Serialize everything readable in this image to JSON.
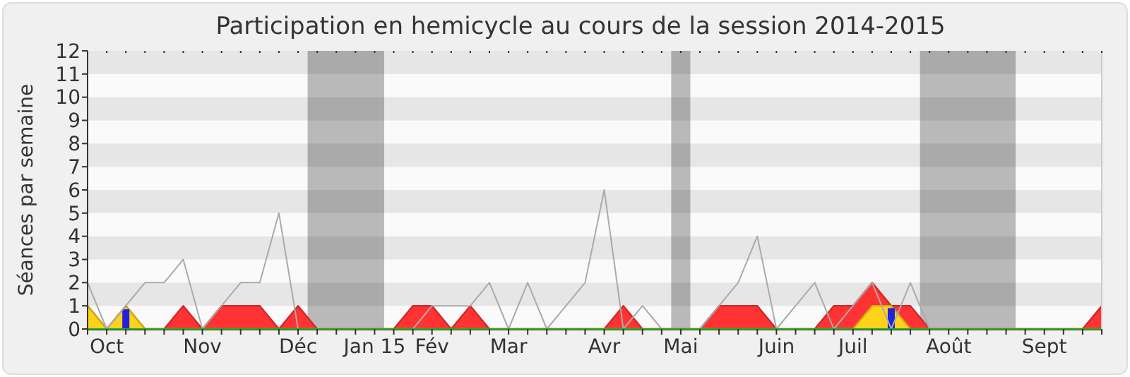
{
  "chart_data": {
    "type": "area",
    "title": "Participation en hemicycle au cours de la session 2014-2015",
    "ylabel": "Séances par semaine",
    "x": [
      "2014-09-29",
      "2014-10-06",
      "2014-10-13",
      "2014-10-20",
      "2014-10-27",
      "2014-11-03",
      "2014-11-10",
      "2014-11-17",
      "2014-11-24",
      "2014-12-01",
      "2014-12-08",
      "2014-12-15",
      "2014-12-22",
      "2014-12-29",
      "2015-01-05",
      "2015-01-12",
      "2015-01-19",
      "2015-01-26",
      "2015-02-02",
      "2015-02-09",
      "2015-02-16",
      "2015-02-23",
      "2015-03-02",
      "2015-03-09",
      "2015-03-16",
      "2015-03-23",
      "2015-03-30",
      "2015-04-06",
      "2015-04-13",
      "2015-04-20",
      "2015-04-27",
      "2015-05-04",
      "2015-05-11",
      "2015-05-18",
      "2015-05-25",
      "2015-06-01",
      "2015-06-08",
      "2015-06-15",
      "2015-06-22",
      "2015-06-29",
      "2015-07-06",
      "2015-07-13",
      "2015-07-20",
      "2015-07-27",
      "2015-08-03",
      "2015-08-10",
      "2015-08-17",
      "2015-08-24",
      "2015-08-31",
      "2015-09-07",
      "2015-09-14",
      "2015-09-21",
      "2015-09-28",
      "2015-10-05"
    ],
    "xlim": [
      "2014-09-29",
      "2015-10-05"
    ],
    "xticks": [
      {
        "value": "2014-10-06",
        "label": "Oct"
      },
      {
        "value": "2014-11-10",
        "label": "Nov"
      },
      {
        "value": "2014-12-15",
        "label": "Déc"
      },
      {
        "value": "2015-01-12",
        "label": "Jan 15"
      },
      {
        "value": "2015-02-02",
        "label": "Fév"
      },
      {
        "value": "2015-03-02",
        "label": "Mar"
      },
      {
        "value": "2015-04-06",
        "label": "Avr"
      },
      {
        "value": "2015-05-04",
        "label": "Mai"
      },
      {
        "value": "2015-06-08",
        "label": "Juin"
      },
      {
        "value": "2015-07-06",
        "label": "Juil"
      },
      {
        "value": "2015-08-10",
        "label": "Août"
      },
      {
        "value": "2015-09-14",
        "label": "Sept"
      },
      {
        "value": "2014-09-29",
        "label": null
      },
      {
        "value": "2014-10-06",
        "label": null
      },
      {
        "value": "2014-10-13",
        "label": null
      },
      {
        "value": "2014-10-20",
        "label": null
      },
      {
        "value": "2014-10-27",
        "label": null
      },
      {
        "value": "2014-11-03",
        "label": null
      },
      {
        "value": "2014-11-10",
        "label": null
      },
      {
        "value": "2014-11-17",
        "label": null
      },
      {
        "value": "2014-11-24",
        "label": null
      },
      {
        "value": "2014-12-01",
        "label": null
      },
      {
        "value": "2014-12-08",
        "label": null
      },
      {
        "value": "2014-12-15",
        "label": null
      },
      {
        "value": "2014-12-22",
        "label": null
      },
      {
        "value": "2014-12-29",
        "label": null
      },
      {
        "value": "2015-01-05",
        "label": null
      },
      {
        "value": "2015-01-12",
        "label": null
      },
      {
        "value": "2015-01-19",
        "label": null
      },
      {
        "value": "2015-01-26",
        "label": null
      },
      {
        "value": "2015-02-02",
        "label": null
      },
      {
        "value": "2015-02-09",
        "label": null
      },
      {
        "value": "2015-02-16",
        "label": null
      },
      {
        "value": "2015-02-23",
        "label": null
      },
      {
        "value": "2015-03-02",
        "label": null
      },
      {
        "value": "2015-03-09",
        "label": null
      },
      {
        "value": "2015-03-16",
        "label": null
      },
      {
        "value": "2015-03-23",
        "label": null
      },
      {
        "value": "2015-03-30",
        "label": null
      },
      {
        "value": "2015-04-06",
        "label": null
      },
      {
        "value": "2015-04-13",
        "label": null
      },
      {
        "value": "2015-04-20",
        "label": null
      },
      {
        "value": "2015-04-27",
        "label": null
      },
      {
        "value": "2015-05-04",
        "label": null
      },
      {
        "value": "2015-05-11",
        "label": null
      },
      {
        "value": "2015-05-18",
        "label": null
      },
      {
        "value": "2015-05-25",
        "label": null
      },
      {
        "value": "2015-06-01",
        "label": null
      },
      {
        "value": "2015-06-08",
        "label": null
      },
      {
        "value": "2015-06-15",
        "label": null
      },
      {
        "value": "2015-06-22",
        "label": null
      },
      {
        "value": "2015-06-29",
        "label": null
      },
      {
        "value": "2015-07-06",
        "label": null
      },
      {
        "value": "2015-07-13",
        "label": null
      },
      {
        "value": "2015-07-20",
        "label": null
      },
      {
        "value": "2015-07-27",
        "label": null
      },
      {
        "value": "2015-08-03",
        "label": null
      },
      {
        "value": "2015-08-10",
        "label": null
      },
      {
        "value": "2015-08-17",
        "label": null
      },
      {
        "value": "2015-08-24",
        "label": null
      },
      {
        "value": "2015-08-31",
        "label": null
      },
      {
        "value": "2015-09-07",
        "label": null
      },
      {
        "value": "2015-09-14",
        "label": null
      },
      {
        "value": "2015-09-21",
        "label": null
      },
      {
        "value": "2015-09-28",
        "label": null
      },
      {
        "value": "2015-10-05",
        "label": null
      }
    ],
    "ylim": [
      0,
      12
    ],
    "yticks": [
      0,
      1,
      2,
      3,
      4,
      5,
      6,
      7,
      8,
      9,
      10,
      11,
      12
    ],
    "bands": [
      {
        "axis": "x",
        "from": "2014-12-18T12:00",
        "to": "2015-01-15T12:00",
        "color": "#bdbdbd"
      },
      {
        "axis": "x",
        "from": "2015-04-30T12:00",
        "to": "2015-05-07T12:00",
        "color": "#bdbdbd"
      },
      {
        "axis": "x",
        "from": "2015-07-30T12:00",
        "to": "2015-09-03T12:00",
        "color": "#bdbdbd"
      }
    ],
    "series": [
      {
        "color": "#ff3333",
        "values": [
          1,
          0,
          1,
          0,
          0,
          1,
          0,
          1,
          1,
          1,
          0,
          1,
          0,
          0,
          0,
          0,
          0,
          1,
          1,
          0,
          1,
          0,
          0,
          0,
          0,
          0,
          0,
          0,
          1,
          0,
          0,
          0,
          0,
          1,
          1,
          1,
          0,
          0,
          0,
          1,
          1,
          2,
          1,
          1,
          0,
          0,
          0,
          0,
          0,
          0,
          0,
          0,
          0,
          1
        ]
      },
      {
        "color": "#ffd21a",
        "values": [
          1,
          0,
          1,
          0,
          0,
          0,
          0,
          0,
          0,
          0,
          0,
          0,
          0,
          0,
          0,
          0,
          0,
          0,
          0,
          0,
          0,
          0,
          0,
          0,
          0,
          0,
          0,
          0,
          0,
          0,
          0,
          0,
          0,
          0,
          0,
          0,
          0,
          0,
          0,
          0,
          0,
          1,
          1,
          0,
          0,
          0,
          0,
          0,
          0,
          0,
          0,
          0,
          0,
          0
        ]
      },
      {
        "type": "bar",
        "color": "#2222dd",
        "x": [
          "2014-10-13",
          "2015-07-20"
        ],
        "values": [
          0.85,
          0.9
        ]
      },
      {
        "type": "line",
        "color": "#aaaaaa",
        "values": [
          2,
          0,
          1,
          2,
          2,
          3,
          0,
          1,
          2,
          2,
          5,
          0,
          0,
          0,
          0,
          0,
          0,
          0,
          1,
          1,
          1,
          2,
          0,
          2,
          0,
          1,
          2,
          6,
          0,
          1,
          0,
          0,
          0,
          1,
          2,
          4,
          0,
          1,
          2,
          0,
          1,
          2,
          0,
          2,
          0,
          0,
          0,
          0,
          0,
          0,
          0,
          0,
          0,
          0
        ]
      },
      {
        "type": "line",
        "color": "#22aa22",
        "values": [
          0,
          0,
          0,
          0,
          0,
          0,
          0,
          0,
          0,
          0,
          0,
          0,
          0,
          0,
          0,
          0,
          0,
          0,
          0,
          0,
          0,
          0,
          0,
          0,
          0,
          0,
          0,
          0,
          0,
          0,
          0,
          0,
          0,
          0,
          0,
          0,
          0,
          0,
          0,
          0,
          0,
          0,
          0,
          0,
          0,
          0,
          0,
          0,
          0,
          0,
          0,
          0,
          0,
          0
        ]
      }
    ]
  }
}
